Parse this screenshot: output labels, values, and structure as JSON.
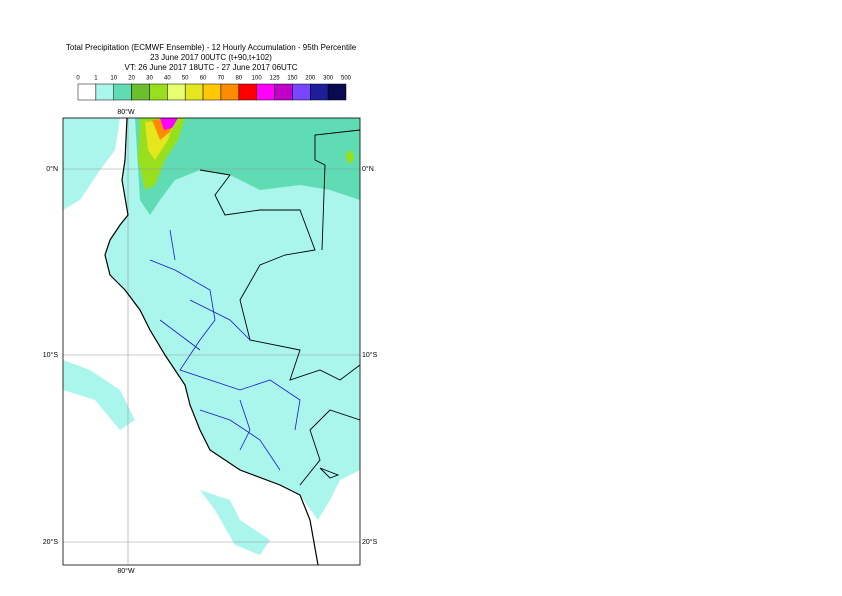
{
  "header": {
    "title": "Total Precipitation (ECMWF Ensemble) - 12 Hourly Accumulation - 95th Percentile",
    "base": "23 June 2017 00UTC (t+90,t+102)",
    "valid": "VT: 26 June 2017 18UTC - 27 June 2017 06UTC"
  },
  "legend": {
    "levels": [
      "0",
      "1",
      "10",
      "20",
      "30",
      "40",
      "50",
      "60",
      "70",
      "80",
      "100",
      "125",
      "150",
      "200",
      "300",
      "500"
    ],
    "colors": [
      "#ffffff",
      "#aaf5ec",
      "#5fdcb4",
      "#6dbe2d",
      "#98e01e",
      "#e6ff6e",
      "#e6e61e",
      "#ffc800",
      "#ff8c00",
      "#ff0000",
      "#ff00ff",
      "#c000c8",
      "#7846ff",
      "#1e1e9b",
      "#0a0a50"
    ]
  },
  "map": {
    "lon_labels": [
      "80°W"
    ],
    "lat_labels": [
      "0°N",
      "10°S",
      "20°S"
    ]
  }
}
